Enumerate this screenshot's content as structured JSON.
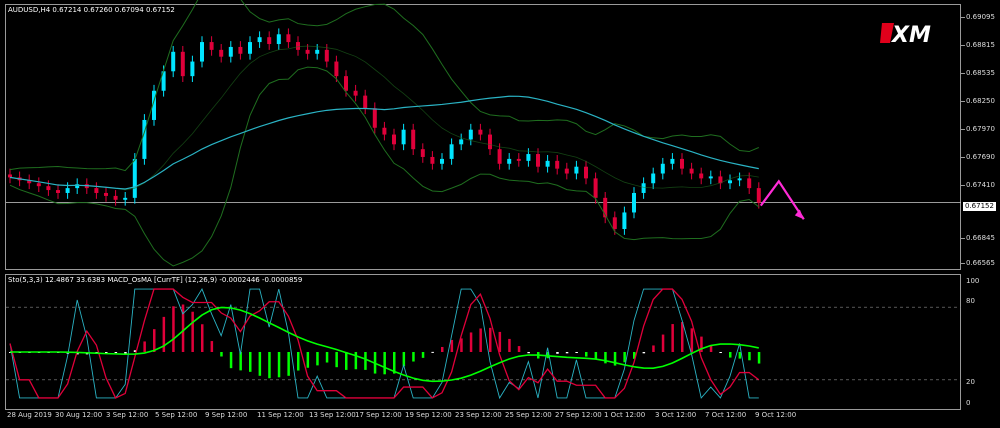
{
  "header": {
    "symbol_line": "AUDUSD,H4  0.67214 0.67260 0.67094 0.67152",
    "indicator_line": "Sto(5,3,3) 12.4867 33.6383  MACD_OsMA [CurrTF] (12,26,9) -0.0002446 -0.0000859"
  },
  "logo": {
    "text": "XM",
    "accent": "#e0001b"
  },
  "price_axis": [
    "0.69095",
    "0.68815",
    "0.68535",
    "0.68250",
    "0.67970",
    "0.67690",
    "0.67410",
    "0.66845",
    "0.66565"
  ],
  "current_price": "0.67152",
  "indicator_axis": [
    "100",
    "80",
    "20",
    "0"
  ],
  "time_axis": [
    "28 Aug 2019",
    "30 Aug 12:00",
    "3 Sep 12:00",
    "5 Sep 12:00",
    "9 Sep 12:00",
    "11 Sep 12:00",
    "13 Sep 12:00",
    "17 Sep 12:00",
    "19 Sep 12:00",
    "23 Sep 12:00",
    "25 Sep 12:00",
    "27 Sep 12:00",
    "1 Oct 12:00",
    "3 Oct 12:00",
    "7 Oct 12:00",
    "9 Oct 12:00"
  ],
  "colors": {
    "background": "#000000",
    "bull_candle": "#00e5ff",
    "bear_candle": "#e0003a",
    "ma_line": "#2ab3c4",
    "bollinger": "#1f6e1f",
    "forecast_arrow": "#ff2bd6",
    "stoch_main": "#2ab3c4",
    "stoch_signal": "#e0003a",
    "macd_signal": "#00ff00",
    "macd_red": "#e0003a",
    "macd_white": "#ffffff",
    "macd_green": "#00ff00"
  },
  "chart_data": {
    "type": "candlestick",
    "symbol": "AUDUSD",
    "timeframe": "H4",
    "ohlc_last": {
      "open": 0.67214,
      "high": 0.6726,
      "low": 0.67094,
      "close": 0.67152
    },
    "ylim": [
      0.665,
      0.6915
    ],
    "close_series": [
      0.6741,
      0.6738,
      0.6735,
      0.6732,
      0.6728,
      0.6725,
      0.673,
      0.6734,
      0.673,
      0.6725,
      0.6722,
      0.6718,
      0.672,
      0.676,
      0.68,
      0.683,
      0.685,
      0.687,
      0.6845,
      0.686,
      0.688,
      0.6872,
      0.6865,
      0.6875,
      0.6868,
      0.688,
      0.6885,
      0.6878,
      0.6888,
      0.688,
      0.6872,
      0.6868,
      0.6872,
      0.686,
      0.6845,
      0.683,
      0.6825,
      0.6812,
      0.6792,
      0.6785,
      0.6775,
      0.679,
      0.677,
      0.6762,
      0.6755,
      0.676,
      0.6775,
      0.678,
      0.679,
      0.6785,
      0.677,
      0.6755,
      0.676,
      0.6758,
      0.6765,
      0.6752,
      0.6758,
      0.675,
      0.6745,
      0.6752,
      0.674,
      0.672,
      0.67,
      0.6688,
      0.6705,
      0.6725,
      0.6735,
      0.6745,
      0.6755,
      0.676,
      0.675,
      0.6745,
      0.674,
      0.6742,
      0.6735,
      0.6738,
      0.674,
      0.673,
      0.6715
    ],
    "forecast": {
      "direction_first": "up",
      "direction_second": "down"
    },
    "indicators": {
      "stochastic": {
        "params": "5,3,3",
        "main": 12.4867,
        "signal": 33.6383,
        "levels": [
          20,
          80
        ]
      },
      "macd_osma": {
        "params": "12,26,9",
        "macd": -0.0002446,
        "osma": -8.59e-05
      }
    }
  }
}
